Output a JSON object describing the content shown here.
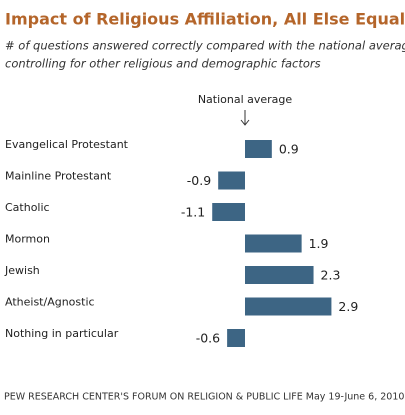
{
  "chart_data": {
    "type": "bar",
    "orientation": "horizontal",
    "title": "Impact of Religious Affiliation, All Else Equal",
    "subtitle": [
      "# of questions answered correctly compared with the national average,",
      "controlling for other religious and demographic factors"
    ],
    "annotation": "National average",
    "categories": [
      "Evangelical Protestant",
      "Mainline Protestant",
      "Catholic",
      "Mormon",
      "Jewish",
      "Atheist/Agnostic",
      "Nothing in particular"
    ],
    "values": [
      0.9,
      -0.9,
      -1.1,
      1.9,
      2.3,
      2.9,
      -0.6
    ],
    "color": "#3d6584",
    "source": "PEW RESEARCH CENTER'S FORUM ON RELIGION & PUBLIC LIFE May 19-June 6, 2010"
  }
}
